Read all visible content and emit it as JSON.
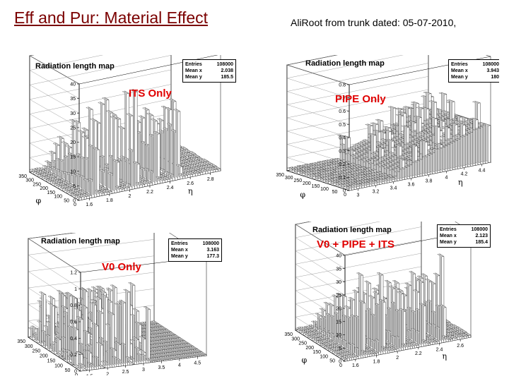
{
  "slide": {
    "title": "Eff and Pur: Material Effect",
    "note": "AliRoot from trunk dated: 05-07-2010,"
  },
  "panels": [
    {
      "id": "its",
      "plot_title": "Radiation length map",
      "stats": {
        "entries_label": "Entries",
        "entries": "108000",
        "meanx_label": "Mean x",
        "meanx": "2.038",
        "meany_label": "Mean y",
        "meany": "185.5"
      },
      "label": "ITS Only",
      "z_ticks": [
        "0",
        "5",
        "10",
        "15",
        "20",
        "25",
        "30",
        "35",
        "40"
      ],
      "phi_ticks": [
        "0",
        "50",
        "100",
        "150",
        "200",
        "250",
        "300",
        "350"
      ],
      "eta_ticks": [
        "1.6",
        "1.8",
        "2",
        "2.2",
        "2.4",
        "2.6",
        "2.8"
      ],
      "phi_symbol": "φ",
      "eta_symbol": "η"
    },
    {
      "id": "pipe",
      "plot_title": "Radiation length map",
      "stats": {
        "entries_label": "Entries",
        "entries": "108000",
        "meanx_label": "Mean x",
        "meanx": "3.943",
        "meany_label": "Mean y",
        "meany": "180"
      },
      "label": "PIPE Only",
      "z_ticks": [
        "0",
        "0.1",
        "0.2",
        "0.3",
        "0.4",
        "0.5",
        "0.6",
        "0.7",
        "0.8"
      ],
      "phi_ticks": [
        "0",
        "50",
        "100",
        "150",
        "200",
        "250",
        "300",
        "350"
      ],
      "eta_ticks": [
        "3",
        "3.2",
        "3.4",
        "3.6",
        "3.8",
        "4",
        "4.2",
        "4.4"
      ],
      "phi_symbol": "φ",
      "eta_symbol": "η"
    },
    {
      "id": "v0",
      "plot_title": "Radiation length map",
      "stats": {
        "entries_label": "Entries",
        "entries": "108000",
        "meanx_label": "Mean x",
        "meanx": "3.163",
        "meany_label": "Mean y",
        "meany": "177.3"
      },
      "label": "V0 Only",
      "z_ticks": [
        "0",
        "0.2",
        "0.4",
        "0.6",
        "0.8",
        "1",
        "1.2"
      ],
      "phi_ticks": [
        "0",
        "50",
        "100",
        "150",
        "200",
        "250",
        "300",
        "350"
      ],
      "eta_ticks": [
        "1.5",
        "2",
        "2.5",
        "3",
        "3.5",
        "4",
        "4.5"
      ],
      "phi_symbol": "",
      "eta_symbol": ""
    },
    {
      "id": "all",
      "plot_title": "Radiation length map",
      "stats": {
        "entries_label": "Entries",
        "entries": "108000",
        "meanx_label": "Mean x",
        "meanx": "2.123",
        "meany_label": "Mean y",
        "meany": "185.4"
      },
      "label": "V0 + PIPE + ITS",
      "z_ticks": [
        "0",
        "5",
        "10",
        "15",
        "20",
        "25",
        "30",
        "35",
        "40"
      ],
      "phi_ticks": [
        "0",
        "50",
        "100",
        "150",
        "200",
        "250",
        "300",
        "350"
      ],
      "eta_ticks": [
        "1.6",
        "1.8",
        "2",
        "2.2",
        "2.4",
        "2.6"
      ],
      "phi_symbol": "φ",
      "eta_symbol": "η"
    }
  ]
}
